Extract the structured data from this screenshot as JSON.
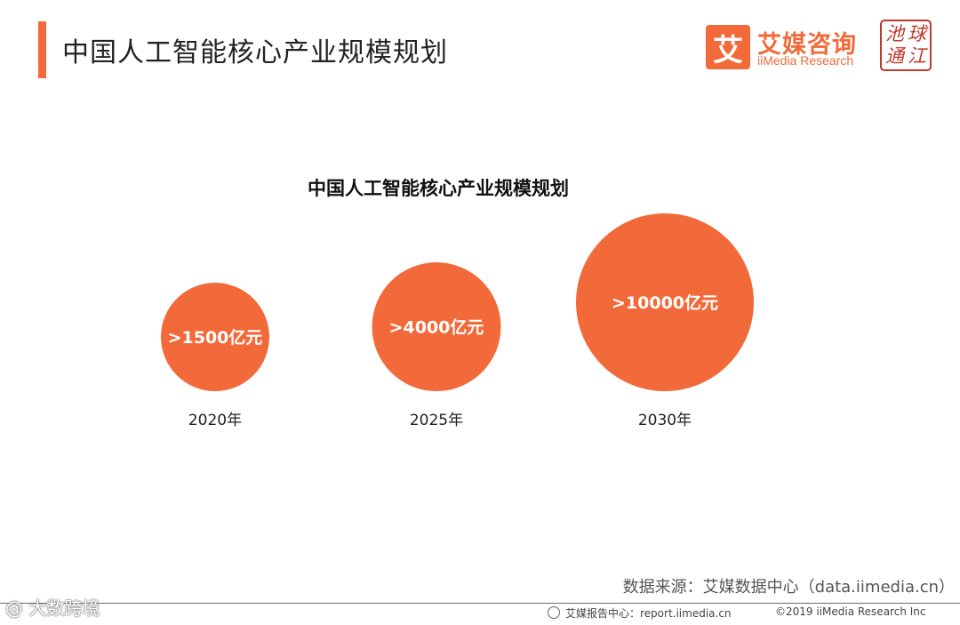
{
  "header": {
    "title": "中国人工智能核心产业规模规划",
    "brand_cn": "艾媒咨询",
    "brand_en": "iiMedia Research",
    "brand_mark": "艾",
    "seal_chars": [
      "池",
      "球",
      "通",
      "江"
    ]
  },
  "colors": {
    "accent": "#f26a3a",
    "bubble": "#f26a3a",
    "seal": "#c0392b"
  },
  "chart_data": {
    "type": "bubble",
    "title": "中国人工智能核心产业规模规划",
    "categories": [
      "2020年",
      "2025年",
      "2030年"
    ],
    "values": [
      1500,
      4000,
      10000
    ],
    "labels": [
      ">1500亿元",
      ">4000亿元",
      ">10000亿元"
    ],
    "unit": "亿元"
  },
  "footer": {
    "source": "数据来源：艾媒数据中心（data.iimedia.cn）",
    "watermark": "@ 大数跨境",
    "report": "艾媒报告中心：report.iimedia.cn",
    "copyright": "©2019  iiMedia Research Inc"
  }
}
